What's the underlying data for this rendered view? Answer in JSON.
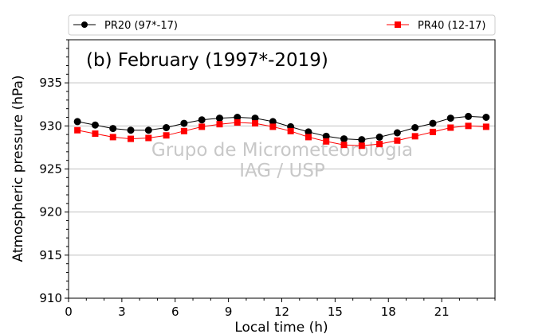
{
  "chart_data": {
    "type": "line",
    "title": "(b) February (1997*-2019)",
    "xlabel": "Local time (h)",
    "ylabel": "Atmospheric pressure (hPa)",
    "xlim": [
      0,
      24
    ],
    "ylim": [
      910,
      940
    ],
    "xticks": [
      0,
      3,
      6,
      9,
      12,
      15,
      18,
      21
    ],
    "yticks": [
      910,
      915,
      920,
      925,
      930,
      935
    ],
    "grid": "horizontal",
    "legend_placement": "top, above plot",
    "watermark": [
      "Grupo de Micrometeorologia",
      "IAG / USP"
    ],
    "x": [
      0.5,
      1.5,
      2.5,
      3.5,
      4.5,
      5.5,
      6.5,
      7.5,
      8.5,
      9.5,
      10.5,
      11.5,
      12.5,
      13.5,
      14.5,
      15.5,
      16.5,
      17.5,
      18.5,
      19.5,
      20.5,
      21.5,
      22.5,
      23.5
    ],
    "series": [
      {
        "name": "PR20 (97*-17)",
        "color": "#000000",
        "marker": "circle",
        "values": [
          930.5,
          930.1,
          929.7,
          929.5,
          929.5,
          929.8,
          930.3,
          930.7,
          930.9,
          931.0,
          930.9,
          930.5,
          929.9,
          929.3,
          928.8,
          928.5,
          928.4,
          928.7,
          929.2,
          929.8,
          930.3,
          930.9,
          931.1,
          931.0
        ]
      },
      {
        "name": "PR40 (12-17)",
        "color": "#ff0000",
        "marker": "square",
        "values": [
          929.5,
          929.1,
          928.7,
          928.5,
          928.6,
          928.9,
          929.4,
          929.9,
          930.2,
          930.4,
          930.3,
          929.9,
          929.4,
          928.7,
          928.2,
          927.8,
          927.7,
          927.9,
          928.3,
          928.8,
          929.3,
          929.8,
          930.0,
          929.9
        ]
      }
    ]
  }
}
